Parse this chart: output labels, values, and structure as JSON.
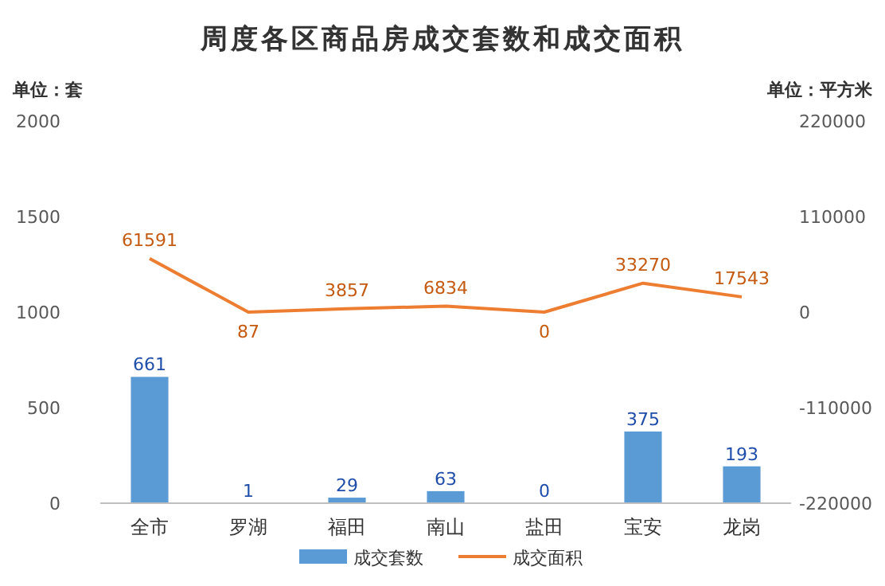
{
  "chart_data": {
    "type": "bar",
    "title": "周度各区商品房成交套数和成交面积",
    "ylabel": "单位：套",
    "y2label": "单位：平方米",
    "categories": [
      "全市",
      "罗湖",
      "福田",
      "南山",
      "盐田",
      "宝安",
      "龙岗"
    ],
    "series": [
      {
        "name": "成交套数",
        "color": "#5b9bd5",
        "values": [
          661,
          1,
          29,
          63,
          0,
          375,
          193
        ]
      },
      {
        "name": "成交面积",
        "type": "line",
        "axis": "y2",
        "color": "#ed7d31",
        "values": [
          61591,
          87,
          3857,
          6834,
          0,
          33270,
          17543
        ]
      }
    ],
    "ylim": [
      0,
      2000
    ],
    "yticks": [
      0,
      500,
      1000,
      1500,
      2000
    ],
    "y2lim": [
      -220000,
      220000
    ],
    "y2ticks": [
      -220000,
      -110000,
      0,
      110000,
      220000
    ],
    "data_labels": true,
    "legend": "bottom"
  }
}
